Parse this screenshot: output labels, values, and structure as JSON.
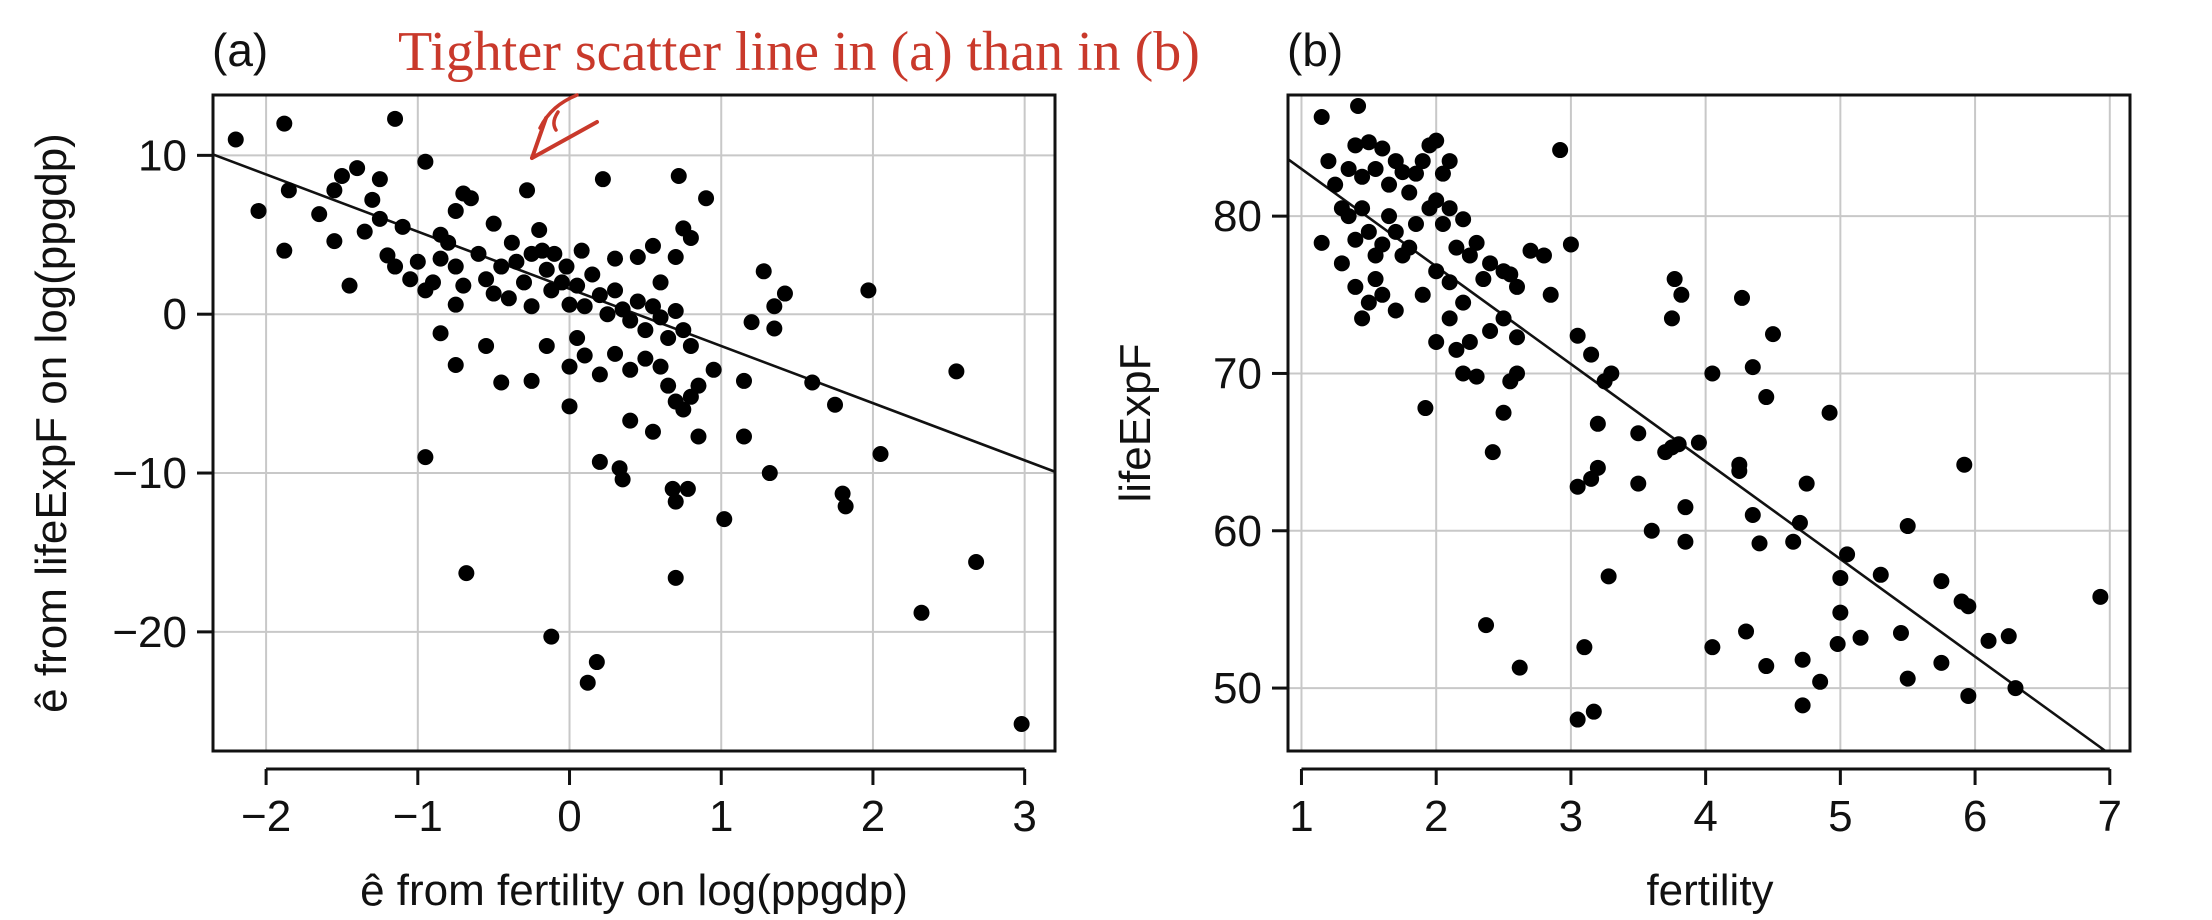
{
  "annotation": {
    "text": "Tighter scatter line in (a) than in (b)",
    "color": "#c9392b"
  },
  "chart_data": [
    {
      "type": "scatter",
      "panel_label": "(a)",
      "xlabel": "ê from fertility on log(ppgdp)",
      "ylabel": "ê from lifeExpF on log(ppgdp)",
      "xlim": [
        -2.35,
        3.2
      ],
      "ylim": [
        -27.5,
        13.8
      ],
      "xticks": [
        -2,
        -1,
        0,
        1,
        2,
        3
      ],
      "xtick_labels": [
        "−2",
        "−1",
        "0",
        "1",
        "2",
        "3"
      ],
      "yticks": [
        -20,
        -10,
        0,
        10
      ],
      "ytick_labels": [
        "−20",
        "−10",
        "0",
        "10"
      ],
      "grid": true,
      "fit_line": {
        "intercept": 1.6,
        "slope": -3.6
      },
      "points": [
        [
          -2.2,
          11.0
        ],
        [
          -1.88,
          12.0
        ],
        [
          -2.05,
          6.5
        ],
        [
          -1.85,
          7.8
        ],
        [
          -1.88,
          4.0
        ],
        [
          -1.65,
          6.3
        ],
        [
          -1.55,
          7.8
        ],
        [
          -1.5,
          8.7
        ],
        [
          -1.55,
          4.6
        ],
        [
          -1.45,
          1.8
        ],
        [
          -1.4,
          9.2
        ],
        [
          -1.35,
          5.2
        ],
        [
          -1.3,
          7.2
        ],
        [
          -1.25,
          8.5
        ],
        [
          -1.25,
          6.0
        ],
        [
          -1.2,
          3.7
        ],
        [
          -1.15,
          3.0
        ],
        [
          -1.1,
          5.5
        ],
        [
          -1.05,
          2.2
        ],
        [
          -1.0,
          3.3
        ],
        [
          -1.15,
          12.3
        ],
        [
          -0.95,
          9.6
        ],
        [
          -0.95,
          1.5
        ],
        [
          -0.9,
          2.0
        ],
        [
          -0.85,
          3.5
        ],
        [
          -0.85,
          5.0
        ],
        [
          -0.8,
          4.5
        ],
        [
          -0.75,
          3.0
        ],
        [
          -0.7,
          1.8
        ],
        [
          -0.75,
          0.6
        ],
        [
          -0.75,
          6.5
        ],
        [
          -0.7,
          7.6
        ],
        [
          -0.65,
          7.3
        ],
        [
          -0.6,
          3.8
        ],
        [
          -0.55,
          2.2
        ],
        [
          -0.5,
          1.3
        ],
        [
          -0.5,
          5.7
        ],
        [
          -0.45,
          3.0
        ],
        [
          -0.4,
          1.0
        ],
        [
          -0.38,
          4.5
        ],
        [
          -0.35,
          3.3
        ],
        [
          -0.3,
          2.0
        ],
        [
          -0.28,
          7.8
        ],
        [
          -0.25,
          3.8
        ],
        [
          -0.25,
          0.5
        ],
        [
          -0.2,
          5.3
        ],
        [
          -0.18,
          4.0
        ],
        [
          -0.15,
          2.8
        ],
        [
          -0.12,
          1.5
        ],
        [
          -0.1,
          3.8
        ],
        [
          -0.05,
          2.0
        ],
        [
          0.0,
          0.6
        ],
        [
          -0.02,
          3.0
        ],
        [
          0.05,
          1.8
        ],
        [
          0.08,
          4.0
        ],
        [
          0.1,
          0.5
        ],
        [
          0.15,
          2.5
        ],
        [
          0.2,
          1.2
        ],
        [
          0.25,
          0.0
        ],
        [
          0.3,
          1.5
        ],
        [
          0.35,
          0.3
        ],
        [
          0.4,
          -0.4
        ],
        [
          0.45,
          0.8
        ],
        [
          0.5,
          -1.0
        ],
        [
          0.55,
          0.5
        ],
        [
          0.6,
          -0.2
        ],
        [
          0.65,
          -1.5
        ],
        [
          0.7,
          0.2
        ],
        [
          0.75,
          -1.0
        ],
        [
          0.8,
          -2.0
        ],
        [
          0.45,
          3.6
        ],
        [
          0.55,
          4.3
        ],
        [
          0.6,
          2.0
        ],
        [
          0.7,
          3.6
        ],
        [
          0.75,
          5.4
        ],
        [
          0.8,
          4.8
        ],
        [
          0.72,
          8.7
        ],
        [
          0.9,
          7.3
        ],
        [
          0.22,
          8.5
        ],
        [
          0.3,
          3.5
        ],
        [
          -0.85,
          -1.2
        ],
        [
          -0.75,
          -3.2
        ],
        [
          -0.55,
          -2.0
        ],
        [
          -0.45,
          -4.3
        ],
        [
          -0.25,
          -4.2
        ],
        [
          -0.15,
          -2.0
        ],
        [
          0.0,
          -3.3
        ],
        [
          0.05,
          -1.5
        ],
        [
          0.1,
          -2.6
        ],
        [
          0.2,
          -3.8
        ],
        [
          0.3,
          -2.5
        ],
        [
          0.4,
          -3.5
        ],
        [
          0.5,
          -2.8
        ],
        [
          0.6,
          -3.3
        ],
        [
          0.65,
          -4.5
        ],
        [
          0.7,
          -5.5
        ],
        [
          0.75,
          -6.0
        ],
        [
          0.8,
          -5.2
        ],
        [
          0.85,
          -4.5
        ],
        [
          0.95,
          -3.5
        ],
        [
          0.0,
          -5.8
        ],
        [
          0.4,
          -6.7
        ],
        [
          0.55,
          -7.4
        ],
        [
          0.85,
          -7.7
        ],
        [
          0.2,
          -9.3
        ],
        [
          0.33,
          -9.7
        ],
        [
          0.35,
          -10.4
        ],
        [
          0.68,
          -11.0
        ],
        [
          0.78,
          -11.0
        ],
        [
          0.7,
          -11.8
        ],
        [
          1.15,
          -4.2
        ],
        [
          1.2,
          -0.5
        ],
        [
          1.28,
          2.7
        ],
        [
          1.35,
          0.5
        ],
        [
          1.35,
          -0.9
        ],
        [
          1.42,
          1.3
        ],
        [
          1.6,
          -4.3
        ],
        [
          1.75,
          -5.7
        ],
        [
          1.97,
          1.5
        ],
        [
          1.15,
          -7.7
        ],
        [
          1.32,
          -10.0
        ],
        [
          1.02,
          -12.9
        ],
        [
          1.8,
          -11.3
        ],
        [
          1.82,
          -12.1
        ],
        [
          2.05,
          -8.8
        ],
        [
          2.55,
          -3.6
        ],
        [
          -0.95,
          -9.0
        ],
        [
          -0.68,
          -16.3
        ],
        [
          0.7,
          -16.6
        ],
        [
          -0.12,
          -20.3
        ],
        [
          0.18,
          -21.9
        ],
        [
          0.12,
          -23.2
        ],
        [
          2.32,
          -18.8
        ],
        [
          2.68,
          -15.6
        ],
        [
          2.98,
          -25.8
        ]
      ]
    },
    {
      "type": "scatter",
      "panel_label": "(b)",
      "xlabel": "fertility",
      "ylabel": "lifeExpF",
      "xlim": [
        0.9,
        7.15
      ],
      "ylim": [
        46.0,
        87.7
      ],
      "xticks": [
        1,
        2,
        3,
        4,
        5,
        6,
        7
      ],
      "xtick_labels": [
        "1",
        "2",
        "3",
        "4",
        "5",
        "6",
        "7"
      ],
      "yticks": [
        50,
        60,
        70,
        80
      ],
      "ytick_labels": [
        "50",
        "60",
        "70",
        "80"
      ],
      "grid": true,
      "fit_line": {
        "intercept": 89.2,
        "slope": -6.2
      },
      "points": [
        [
          1.15,
          86.3
        ],
        [
          1.2,
          83.5
        ],
        [
          1.25,
          82.0
        ],
        [
          1.3,
          80.5
        ],
        [
          1.35,
          83.0
        ],
        [
          1.4,
          84.5
        ],
        [
          1.42,
          87.0
        ],
        [
          1.45,
          82.5
        ],
        [
          1.5,
          84.7
        ],
        [
          1.55,
          83.0
        ],
        [
          1.6,
          84.3
        ],
        [
          1.65,
          82.0
        ],
        [
          1.7,
          83.5
        ],
        [
          1.75,
          82.8
        ],
        [
          1.8,
          81.5
        ],
        [
          1.85,
          82.7
        ],
        [
          1.9,
          83.5
        ],
        [
          1.95,
          84.5
        ],
        [
          2.0,
          84.8
        ],
        [
          2.05,
          82.7
        ],
        [
          2.1,
          83.5
        ],
        [
          1.35,
          80.0
        ],
        [
          1.4,
          78.5
        ],
        [
          1.45,
          80.5
        ],
        [
          1.5,
          79.0
        ],
        [
          1.55,
          77.5
        ],
        [
          1.6,
          78.2
        ],
        [
          1.65,
          80.0
        ],
        [
          1.7,
          79.0
        ],
        [
          1.75,
          77.5
        ],
        [
          1.8,
          78.0
        ],
        [
          1.85,
          79.5
        ],
        [
          1.95,
          80.5
        ],
        [
          2.0,
          81.0
        ],
        [
          2.05,
          79.5
        ],
        [
          2.1,
          80.5
        ],
        [
          2.15,
          78.0
        ],
        [
          2.2,
          79.8
        ],
        [
          2.25,
          77.5
        ],
        [
          2.3,
          78.3
        ],
        [
          1.15,
          78.3
        ],
        [
          1.3,
          77.0
        ],
        [
          1.4,
          75.5
        ],
        [
          1.45,
          73.5
        ],
        [
          1.5,
          74.5
        ],
        [
          1.55,
          76.0
        ],
        [
          1.6,
          75.0
        ],
        [
          1.7,
          74.0
        ],
        [
          1.9,
          75.0
        ],
        [
          2.0,
          76.5
        ],
        [
          2.1,
          75.8
        ],
        [
          2.2,
          74.5
        ],
        [
          2.35,
          76.0
        ],
        [
          2.4,
          77.0
        ],
        [
          2.5,
          76.5
        ],
        [
          2.55,
          76.3
        ],
        [
          2.6,
          75.5
        ],
        [
          2.7,
          77.8
        ],
        [
          2.8,
          77.5
        ],
        [
          2.85,
          75.0
        ],
        [
          3.0,
          78.2
        ],
        [
          2.92,
          84.2
        ],
        [
          2.0,
          72.0
        ],
        [
          2.1,
          73.5
        ],
        [
          2.15,
          71.5
        ],
        [
          2.2,
          70.0
        ],
        [
          2.25,
          72.0
        ],
        [
          2.3,
          69.8
        ],
        [
          2.4,
          72.7
        ],
        [
          2.5,
          73.5
        ],
        [
          2.55,
          69.5
        ],
        [
          2.6,
          70.0
        ],
        [
          2.6,
          72.3
        ],
        [
          2.5,
          67.5
        ],
        [
          1.92,
          67.8
        ],
        [
          2.42,
          65.0
        ],
        [
          3.05,
          72.4
        ],
        [
          3.15,
          71.2
        ],
        [
          3.25,
          69.5
        ],
        [
          3.3,
          70.0
        ],
        [
          3.2,
          66.8
        ],
        [
          3.2,
          64.0
        ],
        [
          3.15,
          63.3
        ],
        [
          3.05,
          62.8
        ],
        [
          3.5,
          66.2
        ],
        [
          3.5,
          63.0
        ],
        [
          3.6,
          60.0
        ],
        [
          3.7,
          65.0
        ],
        [
          3.75,
          65.3
        ],
        [
          3.8,
          65.5
        ],
        [
          3.85,
          61.5
        ],
        [
          3.85,
          59.3
        ],
        [
          3.95,
          65.6
        ],
        [
          3.75,
          73.5
        ],
        [
          3.77,
          76.0
        ],
        [
          3.82,
          75.0
        ],
        [
          4.05,
          70.0
        ],
        [
          4.25,
          64.2
        ],
        [
          4.25,
          63.8
        ],
        [
          4.35,
          61.0
        ],
        [
          4.4,
          59.2
        ],
        [
          4.35,
          70.4
        ],
        [
          4.45,
          68.5
        ],
        [
          4.27,
          74.8
        ],
        [
          4.5,
          72.5
        ],
        [
          4.65,
          59.3
        ],
        [
          4.7,
          60.5
        ],
        [
          4.75,
          63.0
        ],
        [
          4.92,
          67.5
        ],
        [
          5.0,
          57.0
        ],
        [
          5.0,
          54.8
        ],
        [
          5.05,
          58.5
        ],
        [
          5.15,
          53.2
        ],
        [
          5.3,
          57.2
        ],
        [
          5.45,
          53.5
        ],
        [
          5.5,
          60.3
        ],
        [
          5.5,
          50.6
        ],
        [
          5.75,
          51.6
        ],
        [
          5.75,
          56.8
        ],
        [
          5.9,
          55.5
        ],
        [
          5.95,
          55.2
        ],
        [
          5.92,
          64.2
        ],
        [
          6.1,
          53.0
        ],
        [
          6.25,
          53.3
        ],
        [
          6.3,
          50.0
        ],
        [
          5.95,
          49.5
        ],
        [
          6.93,
          55.8
        ],
        [
          4.05,
          52.6
        ],
        [
          4.3,
          53.6
        ],
        [
          4.45,
          51.4
        ],
        [
          4.72,
          51.8
        ],
        [
          4.72,
          48.9
        ],
        [
          4.85,
          50.4
        ],
        [
          4.98,
          52.8
        ],
        [
          3.1,
          52.6
        ],
        [
          3.05,
          48.0
        ],
        [
          3.17,
          48.5
        ],
        [
          2.62,
          51.3
        ],
        [
          2.37,
          54.0
        ],
        [
          3.28,
          57.1
        ]
      ]
    }
  ]
}
